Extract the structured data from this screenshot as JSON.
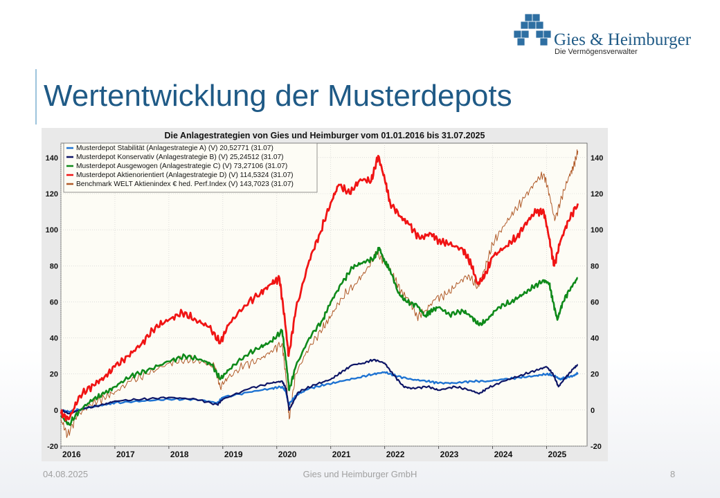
{
  "slide": {
    "title": "Wertentwicklung der Musterdepots",
    "logo_name": "Gies & Heimburger",
    "logo_subtitle": "Die Vermögensverwalter",
    "footer_date": "04.08.2025",
    "footer_company": "Gies und Heimburger GmbH",
    "page_number": "8",
    "colors": {
      "title": "#1f5a86",
      "logo_cube": "#2e6fa2",
      "accent_bar": "#9cc3dc"
    }
  },
  "chart_data": {
    "type": "line",
    "title": "Die Anlagestrategien von Gies und Heimburger vom 01.01.2016 bis 31.07.2025",
    "xlabel": "",
    "ylabel": "",
    "xlim": [
      2016.0,
      2025.75
    ],
    "ylim": [
      -20,
      148
    ],
    "x_ticks": [
      "2016",
      "2017",
      "2018",
      "2019",
      "2020",
      "2021",
      "2022",
      "2023",
      "2024",
      "2025"
    ],
    "y_ticks_left": [
      -20,
      0,
      20,
      40,
      60,
      80,
      100,
      120,
      140
    ],
    "y_ticks_right": [
      -20,
      0,
      20,
      40,
      60,
      80,
      100,
      120,
      140
    ],
    "grid": true,
    "legend_position": "top-left",
    "series": [
      {
        "name": "Musterdepot Stabilität (Anlagestrategie A) (V) 20,52771 (31.07)",
        "color": "#1e73d2",
        "width": 2.4,
        "points": [
          [
            2016.0,
            0
          ],
          [
            2016.15,
            -1
          ],
          [
            2016.45,
            1
          ],
          [
            2016.8,
            3
          ],
          [
            2017.0,
            4
          ],
          [
            2017.5,
            5
          ],
          [
            2018.0,
            6
          ],
          [
            2018.5,
            6
          ],
          [
            2018.9,
            4
          ],
          [
            2019.0,
            7
          ],
          [
            2019.5,
            10
          ],
          [
            2019.9,
            12
          ],
          [
            2020.1,
            13
          ],
          [
            2020.17,
            10
          ],
          [
            2020.22,
            3
          ],
          [
            2020.35,
            8
          ],
          [
            2020.6,
            12
          ],
          [
            2020.9,
            14
          ],
          [
            2021.2,
            16
          ],
          [
            2021.5,
            18
          ],
          [
            2021.8,
            20
          ],
          [
            2022.0,
            21
          ],
          [
            2022.2,
            19
          ],
          [
            2022.5,
            17
          ],
          [
            2022.8,
            16
          ],
          [
            2023.0,
            15
          ],
          [
            2023.3,
            15
          ],
          [
            2023.6,
            16
          ],
          [
            2023.9,
            16
          ],
          [
            2024.2,
            17
          ],
          [
            2024.5,
            18
          ],
          [
            2024.8,
            19
          ],
          [
            2025.0,
            20
          ],
          [
            2025.15,
            19
          ],
          [
            2025.25,
            17
          ],
          [
            2025.35,
            18
          ],
          [
            2025.5,
            19
          ],
          [
            2025.58,
            20.5
          ]
        ]
      },
      {
        "name": "Musterdepot Konservativ (Anlagestrategie B) (V) 25,24512 (31.07)",
        "color": "#0d1566",
        "width": 2.2,
        "points": [
          [
            2016.0,
            0
          ],
          [
            2016.15,
            -2
          ],
          [
            2016.45,
            1
          ],
          [
            2016.8,
            3
          ],
          [
            2017.0,
            5
          ],
          [
            2017.5,
            6
          ],
          [
            2018.0,
            7
          ],
          [
            2018.5,
            6
          ],
          [
            2018.9,
            3
          ],
          [
            2019.0,
            6
          ],
          [
            2019.5,
            12
          ],
          [
            2019.9,
            15
          ],
          [
            2020.1,
            16
          ],
          [
            2020.17,
            12
          ],
          [
            2020.23,
            0
          ],
          [
            2020.4,
            10
          ],
          [
            2020.7,
            14
          ],
          [
            2021.0,
            17
          ],
          [
            2021.2,
            21
          ],
          [
            2021.4,
            25
          ],
          [
            2021.6,
            26
          ],
          [
            2021.8,
            28
          ],
          [
            2022.0,
            26
          ],
          [
            2022.15,
            20
          ],
          [
            2022.35,
            13
          ],
          [
            2022.5,
            12
          ],
          [
            2022.8,
            13
          ],
          [
            2023.0,
            11
          ],
          [
            2023.3,
            13
          ],
          [
            2023.6,
            11
          ],
          [
            2023.75,
            9
          ],
          [
            2023.9,
            12
          ],
          [
            2024.2,
            16
          ],
          [
            2024.5,
            19
          ],
          [
            2024.8,
            22
          ],
          [
            2025.0,
            24
          ],
          [
            2025.12,
            20
          ],
          [
            2025.22,
            13
          ],
          [
            2025.35,
            18
          ],
          [
            2025.5,
            23
          ],
          [
            2025.58,
            25.2
          ]
        ]
      },
      {
        "name": "Musterdepot Ausgewogen (Anlagestrategie C) (V) 73,27106 (31.07)",
        "color": "#0f8a1a",
        "width": 2.6,
        "points": [
          [
            2016.0,
            -3
          ],
          [
            2016.15,
            -8
          ],
          [
            2016.35,
            0
          ],
          [
            2016.6,
            6
          ],
          [
            2016.8,
            9
          ],
          [
            2017.0,
            13
          ],
          [
            2017.3,
            19
          ],
          [
            2017.6,
            22
          ],
          [
            2018.0,
            27
          ],
          [
            2018.3,
            30
          ],
          [
            2018.6,
            28
          ],
          [
            2018.8,
            25
          ],
          [
            2018.95,
            17
          ],
          [
            2019.1,
            22
          ],
          [
            2019.4,
            30
          ],
          [
            2019.7,
            35
          ],
          [
            2019.9,
            38
          ],
          [
            2020.1,
            44
          ],
          [
            2020.18,
            25
          ],
          [
            2020.23,
            11
          ],
          [
            2020.35,
            24
          ],
          [
            2020.6,
            40
          ],
          [
            2020.85,
            50
          ],
          [
            2021.0,
            60
          ],
          [
            2021.2,
            70
          ],
          [
            2021.4,
            79
          ],
          [
            2021.6,
            82
          ],
          [
            2021.8,
            84
          ],
          [
            2021.9,
            90
          ],
          [
            2022.0,
            82
          ],
          [
            2022.1,
            78
          ],
          [
            2022.25,
            65
          ],
          [
            2022.4,
            60
          ],
          [
            2022.6,
            58
          ],
          [
            2022.75,
            52
          ],
          [
            2022.85,
            55
          ],
          [
            2023.0,
            57
          ],
          [
            2023.2,
            53
          ],
          [
            2023.45,
            55
          ],
          [
            2023.6,
            52
          ],
          [
            2023.75,
            47
          ],
          [
            2023.9,
            50
          ],
          [
            2024.1,
            57
          ],
          [
            2024.35,
            60
          ],
          [
            2024.55,
            64
          ],
          [
            2024.75,
            68
          ],
          [
            2024.95,
            72
          ],
          [
            2025.05,
            70
          ],
          [
            2025.12,
            60
          ],
          [
            2025.2,
            50
          ],
          [
            2025.3,
            60
          ],
          [
            2025.45,
            68
          ],
          [
            2025.58,
            73.3
          ]
        ]
      },
      {
        "name": "Musterdepot Aktienorientiert (Anlagestrategie D) (V) 114,5324 (31.07)",
        "color": "#f01414",
        "width": 2.8,
        "points": [
          [
            2016.0,
            -2
          ],
          [
            2016.15,
            -5
          ],
          [
            2016.35,
            8
          ],
          [
            2016.6,
            14
          ],
          [
            2016.8,
            18
          ],
          [
            2017.0,
            24
          ],
          [
            2017.25,
            30
          ],
          [
            2017.5,
            37
          ],
          [
            2017.75,
            46
          ],
          [
            2018.0,
            50
          ],
          [
            2018.25,
            54
          ],
          [
            2018.5,
            50
          ],
          [
            2018.75,
            46
          ],
          [
            2018.95,
            37
          ],
          [
            2019.1,
            47
          ],
          [
            2019.4,
            58
          ],
          [
            2019.7,
            65
          ],
          [
            2019.9,
            70
          ],
          [
            2020.05,
            73
          ],
          [
            2020.15,
            50
          ],
          [
            2020.22,
            30
          ],
          [
            2020.35,
            55
          ],
          [
            2020.6,
            83
          ],
          [
            2020.8,
            98
          ],
          [
            2021.0,
            115
          ],
          [
            2021.15,
            125
          ],
          [
            2021.35,
            120
          ],
          [
            2021.55,
            128
          ],
          [
            2021.75,
            127
          ],
          [
            2021.88,
            141
          ],
          [
            2022.0,
            128
          ],
          [
            2022.1,
            115
          ],
          [
            2022.3,
            107
          ],
          [
            2022.45,
            103
          ],
          [
            2022.65,
            95
          ],
          [
            2022.85,
            98
          ],
          [
            2023.0,
            94
          ],
          [
            2023.2,
            92
          ],
          [
            2023.45,
            89
          ],
          [
            2023.6,
            81
          ],
          [
            2023.72,
            70
          ],
          [
            2023.85,
            74
          ],
          [
            2024.0,
            85
          ],
          [
            2024.25,
            91
          ],
          [
            2024.45,
            96
          ],
          [
            2024.65,
            105
          ],
          [
            2024.8,
            110
          ],
          [
            2024.95,
            110
          ],
          [
            2025.05,
            95
          ],
          [
            2025.14,
            80
          ],
          [
            2025.25,
            93
          ],
          [
            2025.4,
            105
          ],
          [
            2025.58,
            114.5
          ]
        ]
      },
      {
        "name": "Benchmark WELT Aktienindex € hed. Perf.Index (V) 143,7023 (31.07)",
        "color": "#b05a28",
        "width": 1.0,
        "points": [
          [
            2016.0,
            -5
          ],
          [
            2016.12,
            -14
          ],
          [
            2016.3,
            -3
          ],
          [
            2016.55,
            3
          ],
          [
            2016.8,
            7
          ],
          [
            2017.0,
            10
          ],
          [
            2017.3,
            16
          ],
          [
            2017.6,
            20
          ],
          [
            2018.0,
            26
          ],
          [
            2018.3,
            28
          ],
          [
            2018.6,
            27
          ],
          [
            2018.85,
            24
          ],
          [
            2018.95,
            13
          ],
          [
            2019.1,
            18
          ],
          [
            2019.4,
            25
          ],
          [
            2019.7,
            28
          ],
          [
            2019.9,
            33
          ],
          [
            2020.1,
            37
          ],
          [
            2020.18,
            15
          ],
          [
            2020.23,
            -5
          ],
          [
            2020.35,
            20
          ],
          [
            2020.6,
            35
          ],
          [
            2020.85,
            45
          ],
          [
            2021.0,
            52
          ],
          [
            2021.2,
            62
          ],
          [
            2021.45,
            70
          ],
          [
            2021.65,
            77
          ],
          [
            2021.85,
            87
          ],
          [
            2022.0,
            82
          ],
          [
            2022.15,
            75
          ],
          [
            2022.3,
            66
          ],
          [
            2022.45,
            61
          ],
          [
            2022.6,
            52
          ],
          [
            2022.75,
            55
          ],
          [
            2022.95,
            62
          ],
          [
            2023.15,
            64
          ],
          [
            2023.35,
            70
          ],
          [
            2023.55,
            75
          ],
          [
            2023.72,
            68
          ],
          [
            2023.85,
            78
          ],
          [
            2024.0,
            92
          ],
          [
            2024.2,
            102
          ],
          [
            2024.4,
            110
          ],
          [
            2024.6,
            118
          ],
          [
            2024.8,
            127
          ],
          [
            2024.95,
            131
          ],
          [
            2025.05,
            120
          ],
          [
            2025.15,
            105
          ],
          [
            2025.28,
            118
          ],
          [
            2025.42,
            130
          ],
          [
            2025.5,
            135
          ],
          [
            2025.58,
            143.7
          ]
        ]
      }
    ]
  }
}
